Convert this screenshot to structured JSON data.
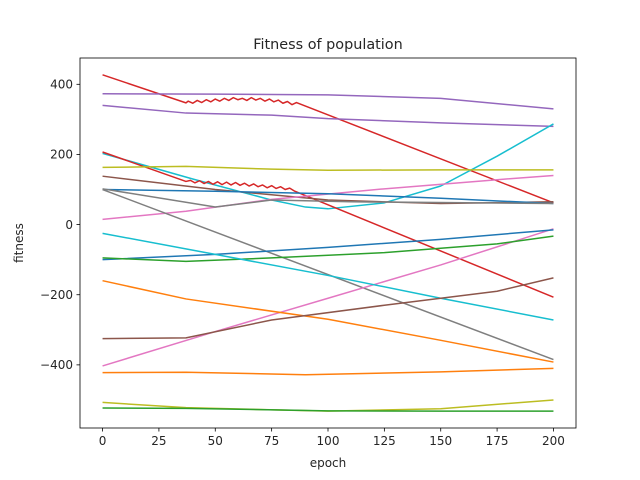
{
  "chart_data": {
    "type": "line",
    "title": "Fitness of population",
    "xlabel": "epoch",
    "ylabel": "fitness",
    "xlim": [
      -10,
      210
    ],
    "ylim": [
      -580,
      475
    ],
    "xticks": [
      0,
      25,
      50,
      75,
      100,
      125,
      150,
      175,
      200
    ],
    "yticks": [
      -400,
      -200,
      0,
      200,
      400
    ],
    "ytick_labels": [
      "−400",
      "−200",
      "0",
      "200",
      "400"
    ],
    "grid": false,
    "legend": "none",
    "series": [
      {
        "color": "#d62728",
        "points": [
          [
            0,
            427
          ],
          [
            37,
            347
          ],
          [
            38,
            352
          ],
          [
            40,
            346
          ],
          [
            42,
            354
          ],
          [
            44,
            348
          ],
          [
            46,
            356
          ],
          [
            48,
            350
          ],
          [
            50,
            358
          ],
          [
            52,
            352
          ],
          [
            54,
            360
          ],
          [
            56,
            354
          ],
          [
            58,
            362
          ],
          [
            60,
            356
          ],
          [
            62,
            360
          ],
          [
            64,
            354
          ],
          [
            66,
            362
          ],
          [
            68,
            355
          ],
          [
            70,
            360
          ],
          [
            72,
            352
          ],
          [
            74,
            358
          ],
          [
            76,
            350
          ],
          [
            78,
            355
          ],
          [
            80,
            346
          ],
          [
            82,
            351
          ],
          [
            84,
            342
          ],
          [
            86,
            348
          ],
          [
            200,
            62
          ]
        ]
      },
      {
        "color": "#9467bd",
        "points": [
          [
            0,
            373
          ],
          [
            50,
            372
          ],
          [
            100,
            370
          ],
          [
            150,
            360
          ],
          [
            200,
            330
          ]
        ]
      },
      {
        "color": "#9467bd",
        "points": [
          [
            0,
            340
          ],
          [
            37,
            318
          ],
          [
            75,
            312
          ],
          [
            100,
            302
          ],
          [
            150,
            290
          ],
          [
            200,
            280
          ]
        ]
      },
      {
        "color": "#17becf",
        "points": [
          [
            0,
            203
          ],
          [
            40,
            130
          ],
          [
            75,
            70
          ],
          [
            90,
            50
          ],
          [
            100,
            45
          ],
          [
            125,
            62
          ],
          [
            150,
            110
          ],
          [
            175,
            195
          ],
          [
            200,
            287
          ]
        ]
      },
      {
        "color": "#d62728",
        "points": [
          [
            0,
            207
          ],
          [
            37,
            123
          ],
          [
            39,
            126
          ],
          [
            41,
            119
          ],
          [
            43,
            125
          ],
          [
            45,
            117
          ],
          [
            47,
            123
          ],
          [
            49,
            115
          ],
          [
            51,
            122
          ],
          [
            53,
            114
          ],
          [
            55,
            121
          ],
          [
            57,
            113
          ],
          [
            59,
            120
          ],
          [
            61,
            112
          ],
          [
            63,
            118
          ],
          [
            65,
            110
          ],
          [
            67,
            116
          ],
          [
            69,
            108
          ],
          [
            71,
            113
          ],
          [
            73,
            105
          ],
          [
            75,
            111
          ],
          [
            77,
            103
          ],
          [
            79,
            108
          ],
          [
            81,
            100
          ],
          [
            83,
            104
          ],
          [
            85,
            96
          ],
          [
            200,
            -207
          ]
        ]
      },
      {
        "color": "#bcbd22",
        "points": [
          [
            0,
            163
          ],
          [
            37,
            166
          ],
          [
            75,
            158
          ],
          [
            100,
            155
          ],
          [
            150,
            156
          ],
          [
            200,
            156
          ]
        ]
      },
      {
        "color": "#8c564b",
        "points": [
          [
            0,
            138
          ],
          [
            50,
            100
          ],
          [
            100,
            70
          ],
          [
            150,
            60
          ],
          [
            200,
            65
          ]
        ]
      },
      {
        "color": "#e377c2",
        "points": [
          [
            0,
            15
          ],
          [
            37,
            38
          ],
          [
            75,
            72
          ],
          [
            125,
            102
          ],
          [
            175,
            128
          ],
          [
            200,
            140
          ]
        ]
      },
      {
        "color": "#1f77b4",
        "points": [
          [
            0,
            100
          ],
          [
            50,
            95
          ],
          [
            100,
            88
          ],
          [
            150,
            75
          ],
          [
            200,
            60
          ]
        ]
      },
      {
        "color": "#7f7f7f",
        "points": [
          [
            0,
            102
          ],
          [
            50,
            50
          ],
          [
            75,
            70
          ],
          [
            110,
            65
          ],
          [
            200,
            60
          ]
        ]
      },
      {
        "color": "#7f7f7f",
        "points": [
          [
            0,
            100
          ],
          [
            200,
            -385
          ]
        ]
      },
      {
        "color": "#e377c2",
        "points": [
          [
            0,
            -403
          ],
          [
            50,
            -305
          ],
          [
            100,
            -210
          ],
          [
            150,
            -115
          ],
          [
            200,
            -12
          ]
        ]
      },
      {
        "color": "#1f77b4",
        "points": [
          [
            0,
            -100
          ],
          [
            50,
            -85
          ],
          [
            100,
            -65
          ],
          [
            150,
            -42
          ],
          [
            200,
            -15
          ]
        ]
      },
      {
        "color": "#2ca02c",
        "points": [
          [
            0,
            -95
          ],
          [
            37,
            -105
          ],
          [
            75,
            -95
          ],
          [
            125,
            -80
          ],
          [
            175,
            -55
          ],
          [
            200,
            -33
          ]
        ]
      },
      {
        "color": "#17becf",
        "points": [
          [
            0,
            -25
          ],
          [
            50,
            -85
          ],
          [
            100,
            -145
          ],
          [
            150,
            -210
          ],
          [
            200,
            -272
          ]
        ]
      },
      {
        "color": "#ff7f0e",
        "points": [
          [
            0,
            -160
          ],
          [
            37,
            -212
          ],
          [
            100,
            -270
          ],
          [
            150,
            -330
          ],
          [
            200,
            -392
          ]
        ]
      },
      {
        "color": "#8c564b",
        "points": [
          [
            0,
            -325
          ],
          [
            37,
            -323
          ],
          [
            75,
            -272
          ],
          [
            125,
            -230
          ],
          [
            175,
            -190
          ],
          [
            200,
            -152
          ]
        ]
      },
      {
        "color": "#ff7f0e",
        "points": [
          [
            0,
            -422
          ],
          [
            37,
            -421
          ],
          [
            90,
            -428
          ],
          [
            150,
            -420
          ],
          [
            200,
            -410
          ]
        ]
      },
      {
        "color": "#bcbd22",
        "points": [
          [
            0,
            -507
          ],
          [
            37,
            -522
          ],
          [
            100,
            -532
          ],
          [
            150,
            -525
          ],
          [
            200,
            -500
          ]
        ]
      },
      {
        "color": "#2ca02c",
        "points": [
          [
            0,
            -523
          ],
          [
            37,
            -524
          ],
          [
            100,
            -531
          ],
          [
            150,
            -532
          ],
          [
            200,
            -532
          ]
        ]
      }
    ]
  }
}
